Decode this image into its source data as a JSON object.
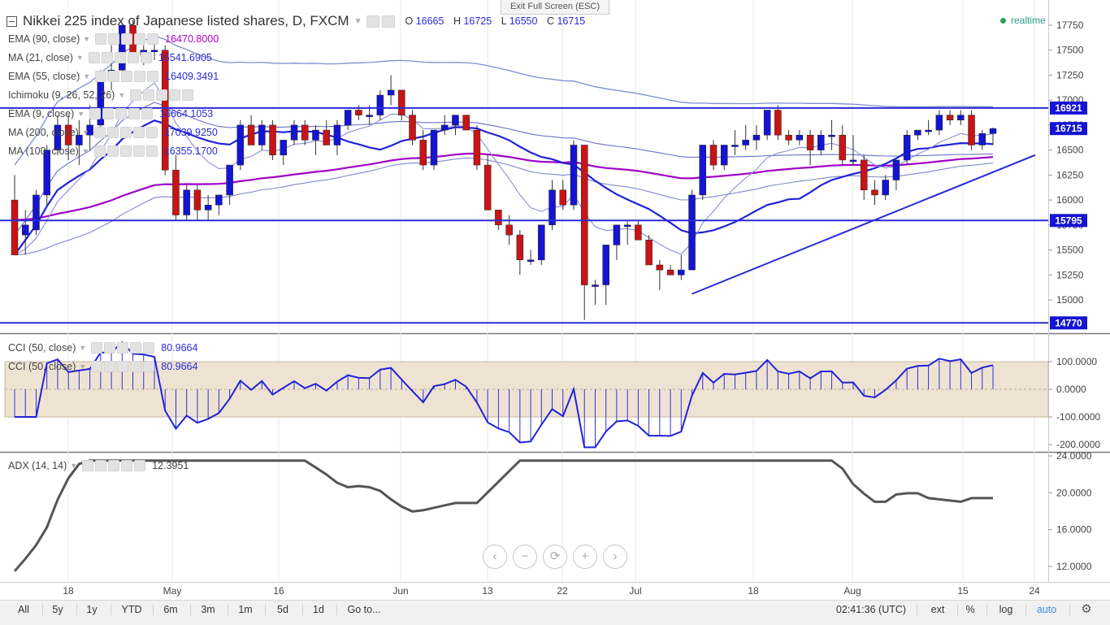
{
  "title": {
    "text": "Nikkei 225 index of Japanese listed shares, D, FXCM",
    "o_label": "O",
    "o_value": "16665",
    "h_label": "H",
    "h_value": "16725",
    "l_label": "L",
    "l_value": "16550",
    "c_label": "C",
    "c_value": "16715"
  },
  "exit_fullscreen": "Exit Full Screen (ESC)",
  "realtime": "realtime",
  "indicators": [
    {
      "name": "EMA (90, close)",
      "value": "16470.8000",
      "color": "#b000c8"
    },
    {
      "name": "MA (21, close)",
      "value": "16541.6905",
      "color": "#2b2bd8"
    },
    {
      "name": "EMA (55, close)",
      "value": "16409.3491",
      "color": "#2b2bd8"
    },
    {
      "name": "Ichimoku (9, 26, 52, 26)",
      "value": "",
      "color": "#2b2bd8"
    },
    {
      "name": "EMA (9, close)",
      "value": "16664.1053",
      "color": "#2b2bd8"
    },
    {
      "name": "MA (200, close)",
      "value": "17039.9250",
      "color": "#2b2bd8"
    },
    {
      "name": "MA (100, close)",
      "value": "16355.1700",
      "color": "#2b2bd8"
    }
  ],
  "cci_legends": [
    {
      "name": "CCI (50, close)",
      "value": "80.9664"
    },
    {
      "name": "CCI (50, close)",
      "value": "80.9664"
    }
  ],
  "adx_legend": {
    "name": "ADX (14, 14)",
    "value": "12.3951"
  },
  "price_axis_labels": [
    "17750",
    "17500",
    "17250",
    "17000",
    "16750",
    "16500",
    "16250",
    "16000",
    "15750",
    "15500",
    "15250",
    "15000"
  ],
  "price_markers": [
    {
      "label": "16921",
      "type": "level"
    },
    {
      "label": "16715",
      "type": "last"
    },
    {
      "label": "15795",
      "type": "level"
    },
    {
      "label": "14770",
      "type": "level"
    }
  ],
  "cci_axis_labels": [
    "100.0000",
    "0.0000",
    "-100.0000",
    "-200.0000"
  ],
  "adx_axis_labels": [
    "24.0000",
    "20.0000",
    "16.0000",
    "12.0000"
  ],
  "time_axis_labels": [
    "18",
    "May",
    "16",
    "Jun",
    "13",
    "22",
    "Jul",
    "18",
    "Aug",
    "15",
    "24"
  ],
  "nav_buttons": [
    {
      "name": "scroll-left",
      "glyph": "‹"
    },
    {
      "name": "zoom-out",
      "glyph": "−"
    },
    {
      "name": "reset",
      "glyph": "⟳"
    },
    {
      "name": "zoom-in",
      "glyph": "+"
    },
    {
      "name": "scroll-right",
      "glyph": "›"
    }
  ],
  "toolbar": {
    "ranges": [
      "All",
      "5y",
      "1y",
      "YTD",
      "6m",
      "3m",
      "1m",
      "5d",
      "1d",
      "Go to..."
    ],
    "time": "02:41:36 (UTC)",
    "ext": "ext",
    "percent": "%",
    "log": "log",
    "auto": "auto"
  },
  "colors": {
    "up": "#1414d2",
    "down": "#c81414",
    "level": "#2b2bd8",
    "cci_band": "#eee3d3",
    "adx": "#555555"
  },
  "chart_data": {
    "type": "candlestick",
    "symbol": "Nikkei 225",
    "price_range": [
      14770,
      17750
    ],
    "ohlc": [
      [
        16000,
        16250,
        15450,
        15450
      ],
      [
        15650,
        15900,
        15450,
        15750
      ],
      [
        15700,
        16100,
        15650,
        16050
      ],
      [
        16050,
        16550,
        15950,
        16500
      ],
      [
        16500,
        16850,
        16450,
        16750
      ],
      [
        16750,
        16850,
        16400,
        16550
      ],
      [
        16550,
        16800,
        16350,
        16650
      ],
      [
        16650,
        16950,
        16500,
        16750
      ],
      [
        16750,
        17300,
        16700,
        17200
      ],
      [
        17200,
        17550,
        17100,
        17300
      ],
      [
        17300,
        17750,
        17200,
        17750
      ],
      [
        17750,
        17800,
        17400,
        17450
      ],
      [
        17450,
        17550,
        17350,
        17500
      ],
      [
        17500,
        17600,
        17400,
        17500
      ],
      [
        17500,
        17550,
        16250,
        16300
      ],
      [
        16300,
        16450,
        15800,
        15850
      ],
      [
        15850,
        16150,
        15800,
        16100
      ],
      [
        16100,
        16150,
        15800,
        15900
      ],
      [
        15900,
        16050,
        15800,
        15950
      ],
      [
        15950,
        16050,
        15850,
        16050
      ],
      [
        16050,
        16350,
        15950,
        16350
      ],
      [
        16350,
        16800,
        16300,
        16750
      ],
      [
        16750,
        16850,
        16550,
        16550
      ],
      [
        16550,
        16800,
        16500,
        16750
      ],
      [
        16750,
        16800,
        16400,
        16450
      ],
      [
        16450,
        16600,
        16350,
        16600
      ],
      [
        16600,
        16800,
        16550,
        16750
      ],
      [
        16750,
        16800,
        16550,
        16600
      ],
      [
        16600,
        16750,
        16450,
        16700
      ],
      [
        16700,
        16800,
        16550,
        16550
      ],
      [
        16550,
        16800,
        16450,
        16750
      ],
      [
        16750,
        16900,
        16700,
        16900
      ],
      [
        16900,
        16950,
        16800,
        16850
      ],
      [
        16850,
        16950,
        16750,
        16850
      ],
      [
        16850,
        17100,
        16800,
        17050
      ],
      [
        17050,
        17250,
        16950,
        17100
      ],
      [
        17100,
        17100,
        16800,
        16850
      ],
      [
        16850,
        16900,
        16550,
        16600
      ],
      [
        16600,
        16700,
        16300,
        16350
      ],
      [
        16350,
        16700,
        16300,
        16700
      ],
      [
        16700,
        16850,
        16650,
        16750
      ],
      [
        16750,
        16850,
        16650,
        16850
      ],
      [
        16850,
        16850,
        16700,
        16700
      ],
      [
        16700,
        16750,
        16300,
        16350
      ],
      [
        16350,
        16450,
        15900,
        15900
      ],
      [
        15900,
        15900,
        15700,
        15750
      ],
      [
        15750,
        15850,
        15550,
        15650
      ],
      [
        15650,
        15700,
        15250,
        15400
      ],
      [
        15400,
        15500,
        15350,
        15400
      ],
      [
        15400,
        15750,
        15350,
        15750
      ],
      [
        15750,
        16200,
        15700,
        16100
      ],
      [
        16100,
        16200,
        15900,
        15950
      ],
      [
        15950,
        16600,
        15900,
        16550
      ],
      [
        16550,
        16550,
        14800,
        15150
      ],
      [
        15150,
        15200,
        14950,
        15150
      ],
      [
        15150,
        15550,
        14950,
        15550
      ],
      [
        15550,
        15750,
        15400,
        15750
      ],
      [
        15750,
        15800,
        15550,
        15750
      ],
      [
        15750,
        15800,
        15600,
        15600
      ],
      [
        15600,
        15650,
        15350,
        15350
      ],
      [
        15350,
        15400,
        15100,
        15300
      ],
      [
        15300,
        15350,
        15250,
        15250
      ],
      [
        15250,
        15450,
        15200,
        15300
      ],
      [
        15300,
        16100,
        15300,
        16050
      ],
      [
        16050,
        16550,
        16000,
        16550
      ],
      [
        16550,
        16600,
        16300,
        16350
      ],
      [
        16350,
        16550,
        16300,
        16550
      ],
      [
        16550,
        16700,
        16450,
        16550
      ],
      [
        16550,
        16750,
        16500,
        16600
      ],
      [
        16600,
        16750,
        16500,
        16650
      ],
      [
        16650,
        16900,
        16600,
        16900
      ],
      [
        16900,
        16950,
        16600,
        16650
      ],
      [
        16650,
        16700,
        16550,
        16600
      ],
      [
        16600,
        16700,
        16550,
        16650
      ],
      [
        16650,
        16700,
        16350,
        16500
      ],
      [
        16500,
        16700,
        16450,
        16650
      ],
      [
        16650,
        16800,
        16500,
        16650
      ],
      [
        16650,
        16750,
        16350,
        16400
      ],
      [
        16400,
        16650,
        16350,
        16400
      ],
      [
        16400,
        16450,
        16000,
        16100
      ],
      [
        16100,
        16200,
        15950,
        16050
      ],
      [
        16050,
        16250,
        16000,
        16200
      ],
      [
        16200,
        16400,
        16100,
        16400
      ],
      [
        16400,
        16700,
        16350,
        16650
      ],
      [
        16650,
        16700,
        16600,
        16700
      ],
      [
        16700,
        16800,
        16650,
        16700
      ],
      [
        16700,
        16900,
        16650,
        16850
      ],
      [
        16850,
        16900,
        16750,
        16800
      ],
      [
        16800,
        16900,
        16750,
        16850
      ],
      [
        16850,
        16900,
        16500,
        16550
      ],
      [
        16550,
        16700,
        16500,
        16665
      ],
      [
        16665,
        16725,
        16550,
        16715
      ]
    ],
    "horizontal_levels": [
      16921,
      15795,
      14770
    ],
    "trendline": [
      [
        15060,
        63
      ],
      [
        16450,
        91
      ]
    ],
    "cci_range": [
      -200,
      100
    ],
    "adx_range": [
      12,
      24
    ]
  }
}
